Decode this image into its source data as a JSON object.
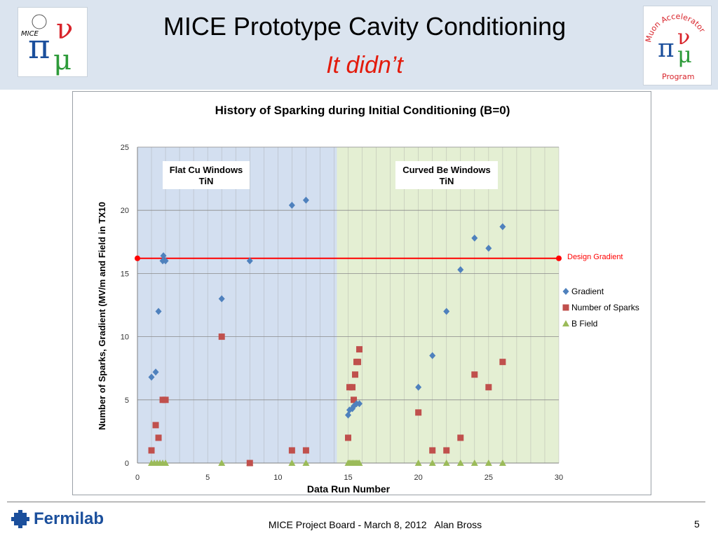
{
  "slide": {
    "title": "MICE Prototype Cavity Conditioning",
    "subtitle": "It didn’t",
    "footer_text": "MICE Project Board - March 8, 2012   Alan Bross",
    "page_number": "5",
    "fermilab_label": "Fermilab",
    "left_logo_text": "MICE",
    "right_logo_text_top": "Muon Accelerator",
    "right_logo_text_bottom": "Program"
  },
  "chart_data": {
    "type": "scatter",
    "title": "History of Sparking during Initial Conditioning (B=0)",
    "xlabel": "Data Run Number",
    "ylabel": "Number of Sparks, Gradient (MV/m and Field in TX10",
    "xlim": [
      0,
      30
    ],
    "ylim": [
      0,
      25
    ],
    "x_ticks": [
      "0",
      "5",
      "10",
      "15",
      "20",
      "25",
      "30"
    ],
    "y_ticks": [
      "0",
      "5",
      "10",
      "15",
      "20",
      "25"
    ],
    "grid": true,
    "legend_position": "right",
    "regions": [
      {
        "label_line1": "Flat Cu Windows",
        "label_line2": "TiN",
        "x_range": [
          0,
          14.2
        ],
        "color": "#d3dff0"
      },
      {
        "label_line1": "Curved Be Windows",
        "label_line2": "TiN",
        "x_range": [
          14.2,
          30
        ],
        "color": "#e4efd3"
      }
    ],
    "reference_line": {
      "label": "Design Gradient",
      "y": 16.2,
      "color": "#ff0000"
    },
    "series": [
      {
        "name": "Gradient",
        "marker": "diamond",
        "color": "#4f81bd",
        "points": [
          [
            1,
            6.8
          ],
          [
            1.3,
            7.2
          ],
          [
            1.5,
            12
          ],
          [
            1.8,
            16
          ],
          [
            1.85,
            16.4
          ],
          [
            2,
            16
          ],
          [
            6,
            13
          ],
          [
            8,
            16
          ],
          [
            11,
            20.4
          ],
          [
            12,
            20.8
          ],
          [
            15,
            3.8
          ],
          [
            15.1,
            4.2
          ],
          [
            15.3,
            4.3
          ],
          [
            15.4,
            4.5
          ],
          [
            15.6,
            4.7
          ],
          [
            15.8,
            4.7
          ],
          [
            20,
            6
          ],
          [
            21,
            8.5
          ],
          [
            22,
            12
          ],
          [
            23,
            15.3
          ],
          [
            24,
            17.8
          ],
          [
            25,
            17
          ],
          [
            26,
            18.7
          ]
        ]
      },
      {
        "name": "Number of Sparks",
        "marker": "square",
        "color": "#c0504d",
        "points": [
          [
            1,
            1
          ],
          [
            1.3,
            3
          ],
          [
            1.5,
            2
          ],
          [
            1.8,
            5
          ],
          [
            2,
            5
          ],
          [
            6,
            10
          ],
          [
            8,
            0
          ],
          [
            11,
            1
          ],
          [
            12,
            1
          ],
          [
            15,
            2
          ],
          [
            15.1,
            6
          ],
          [
            15.3,
            6
          ],
          [
            15.4,
            5
          ],
          [
            15.5,
            7
          ],
          [
            15.6,
            8
          ],
          [
            15.7,
            8
          ],
          [
            15.8,
            9
          ],
          [
            20,
            4
          ],
          [
            21,
            1
          ],
          [
            22,
            1
          ],
          [
            23,
            2
          ],
          [
            24,
            7
          ],
          [
            25,
            6
          ],
          [
            26,
            8
          ]
        ]
      },
      {
        "name": "B Field",
        "marker": "triangle",
        "color": "#9bbb59",
        "points": [
          [
            1,
            0
          ],
          [
            1.2,
            0
          ],
          [
            1.4,
            0
          ],
          [
            1.6,
            0
          ],
          [
            1.8,
            0
          ],
          [
            2,
            0
          ],
          [
            6,
            0
          ],
          [
            8,
            0
          ],
          [
            11,
            0
          ],
          [
            12,
            0
          ],
          [
            15,
            0
          ],
          [
            15.1,
            0
          ],
          [
            15.2,
            0
          ],
          [
            15.3,
            0
          ],
          [
            15.4,
            0
          ],
          [
            15.5,
            0
          ],
          [
            15.6,
            0
          ],
          [
            15.7,
            0
          ],
          [
            15.8,
            0
          ],
          [
            20,
            0
          ],
          [
            21,
            0
          ],
          [
            22,
            0
          ],
          [
            23,
            0
          ],
          [
            24,
            0
          ],
          [
            25,
            0
          ],
          [
            26,
            0
          ]
        ]
      }
    ]
  }
}
